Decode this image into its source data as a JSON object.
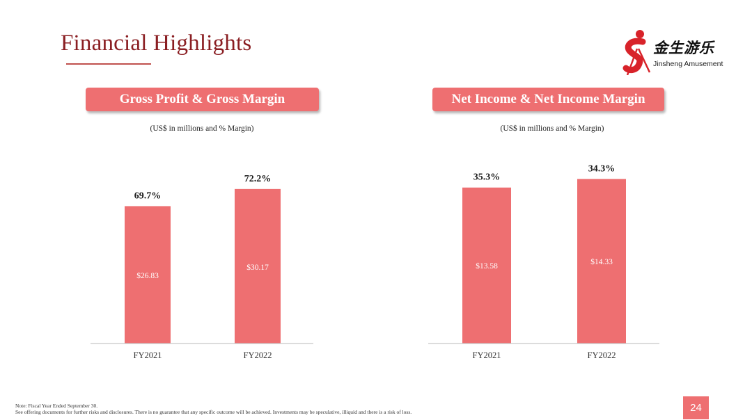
{
  "slide": {
    "title": "Financial Highlights",
    "page_number": "24"
  },
  "logo": {
    "name": "金生游乐",
    "subtitle": "Jinsheng Amusement"
  },
  "panels": [
    {
      "header": "Gross Profit & Gross Margin",
      "subtitle": "(US$ in millions and % Margin)"
    },
    {
      "header": "Net Income & Net Income Margin",
      "subtitle": "(US$ in millions and % Margin)"
    }
  ],
  "footnote": {
    "line1": "Note: Fiscal Year Ended September 30.",
    "line2": "See offering documents for further risks and disclosures. There is no guarantee that any specific outcome will be achieved. Investments may be speculative, illiquid and there is a risk of loss."
  },
  "colors": {
    "accent": "#ee6f71",
    "title": "#8a1e22"
  },
  "chart_data": [
    {
      "type": "bar",
      "title": "Gross Profit & Gross Margin",
      "subtitle": "(US$ in millions and % Margin)",
      "categories": [
        "FY2021",
        "FY2022"
      ],
      "values": [
        26.83,
        30.17
      ],
      "value_labels": [
        "$26.83",
        "$30.17"
      ],
      "margin_labels": [
        "69.7%",
        "72.2%"
      ],
      "ylim": [
        0,
        33
      ],
      "grid": false
    },
    {
      "type": "bar",
      "title": "Net Income & Net Income Margin",
      "subtitle": "(US$ in millions and % Margin)",
      "categories": [
        "FY2021",
        "FY2022"
      ],
      "values": [
        13.58,
        14.33
      ],
      "value_labels": [
        "$13.58",
        "$14.33"
      ],
      "margin_labels": [
        "35.3%",
        "34.3%"
      ],
      "ylim": [
        0,
        15.5
      ],
      "grid": false
    }
  ]
}
